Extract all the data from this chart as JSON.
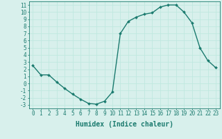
{
  "x": [
    0,
    1,
    2,
    3,
    4,
    5,
    6,
    7,
    8,
    9,
    10,
    11,
    12,
    13,
    14,
    15,
    16,
    17,
    18,
    19,
    20,
    21,
    22,
    23
  ],
  "y": [
    2.5,
    1.2,
    1.2,
    0.2,
    -0.7,
    -1.5,
    -2.2,
    -2.8,
    -2.9,
    -2.5,
    -1.2,
    7.0,
    8.7,
    9.3,
    9.7,
    9.9,
    10.7,
    11.0,
    11.0,
    10.0,
    8.5,
    5.0,
    3.2,
    2.2
  ],
  "line_color": "#1a7a6e",
  "marker": "D",
  "marker_size": 2.0,
  "line_width": 1.0,
  "xlabel": "Humidex (Indice chaleur)",
  "xlabel_fontsize": 7,
  "xlabel_weight": "bold",
  "xlim": [
    -0.5,
    23.5
  ],
  "ylim": [
    -3.5,
    11.5
  ],
  "xticks": [
    0,
    1,
    2,
    3,
    4,
    5,
    6,
    7,
    8,
    9,
    10,
    11,
    12,
    13,
    14,
    15,
    16,
    17,
    18,
    19,
    20,
    21,
    22,
    23
  ],
  "yticks": [
    -3,
    -2,
    -1,
    0,
    1,
    2,
    3,
    4,
    5,
    6,
    7,
    8,
    9,
    10,
    11
  ],
  "grid_color": "#c0e8e0",
  "background_color": "#d8f0ec",
  "tick_fontsize": 5.5
}
